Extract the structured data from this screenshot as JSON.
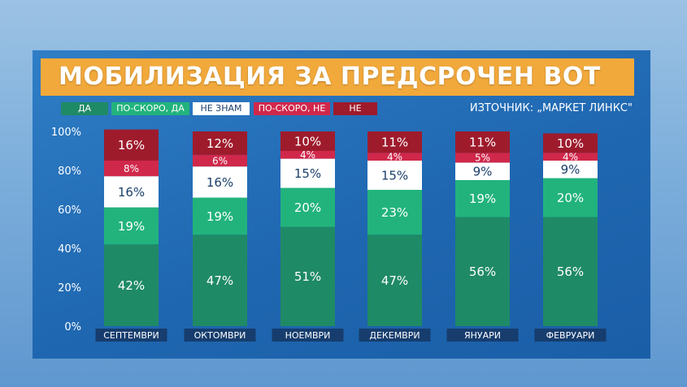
{
  "title": "МОБИЛИЗАЦИЯ ЗА ПРЕДСРОЧЕН ВОТ",
  "source": "ИЗТОЧНИК: „МАРКЕТ ЛИНКС\"",
  "colors": {
    "da": "#1f8a66",
    "poskoro_da": "#22b37d",
    "ne_znam": "#ffffff",
    "poskoro_ne": "#d0284b",
    "ne": "#9e1b2c",
    "title_bg": "#f2a93b",
    "panel": "#1f67b1"
  },
  "legend": [
    {
      "label": "ДА",
      "color": "#1f8a66",
      "text_color": "#ffffff"
    },
    {
      "label": "ПО-СКОРО, ДА",
      "color": "#22b37d",
      "text_color": "#ffffff"
    },
    {
      "label": "НЕ ЗНАМ",
      "color": "#ffffff",
      "text_color": "#1b3f6b"
    },
    {
      "label": "ПО-СКОРО, НЕ",
      "color": "#d0284b",
      "text_color": "#ffffff"
    },
    {
      "label": "НЕ",
      "color": "#9e1b2c",
      "text_color": "#ffffff"
    }
  ],
  "chart_data": {
    "type": "bar",
    "stacked": true,
    "categories": [
      "СЕПТЕМВРИ",
      "ОКТОМВРИ",
      "НОЕМВРИ",
      "ДЕКЕМВРИ",
      "ЯНУАРИ",
      "ФЕВРУАРИ"
    ],
    "series": [
      {
        "name": "ДА",
        "values": [
          42,
          47,
          51,
          47,
          56,
          56
        ],
        "labels": [
          "42%",
          "47%",
          "51%",
          "47%",
          "56%",
          "56%"
        ]
      },
      {
        "name": "ПО-СКОРО, ДА",
        "values": [
          19,
          19,
          20,
          23,
          19,
          20
        ],
        "labels": [
          "19%",
          "19%",
          "20%",
          "23%",
          "19%",
          "20%"
        ]
      },
      {
        "name": "НЕ ЗНАМ",
        "values": [
          16,
          16,
          15,
          15,
          9,
          9
        ],
        "labels": [
          "16%",
          "16%",
          "15%",
          "15%",
          "9%",
          "9%"
        ]
      },
      {
        "name": "ПО-СКОРО, НЕ",
        "values": [
          8,
          6,
          4,
          4,
          5,
          4
        ],
        "labels": [
          "8%",
          "6%",
          "4%",
          "4%",
          "5%",
          "4%"
        ]
      },
      {
        "name": "НЕ",
        "values": [
          16,
          12,
          10,
          11,
          11,
          10
        ],
        "labels": [
          "16%",
          "12%",
          "10%",
          "11%",
          "11%",
          "10%"
        ]
      }
    ],
    "y_ticks": [
      "0%",
      "20%",
      "40%",
      "60%",
      "80%",
      "100%"
    ],
    "y_tick_values": [
      0,
      20,
      40,
      60,
      80,
      100
    ],
    "ylim": [
      0,
      100
    ],
    "legend_position": "top-left",
    "grid": false
  }
}
